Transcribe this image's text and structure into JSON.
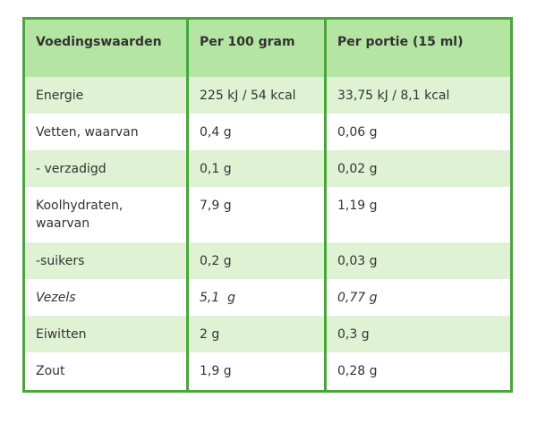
{
  "table": {
    "headers": [
      "Voedingswaarden",
      "Per 100 gram",
      "Per portie (15 ml)"
    ],
    "rows": [
      {
        "label": "Energie",
        "per100": "225 kJ / 54 kcal",
        "portion": "33,75 kJ / 8,1 kcal"
      },
      {
        "label": "Vetten, waarvan",
        "per100": "0,4 g",
        "portion": "0,06 g"
      },
      {
        "label": "- verzadigd",
        "per100": "0,1 g",
        "portion": "0,02 g"
      },
      {
        "label": "Koolhydraten, waarvan",
        "per100": "7,9 g",
        "portion": "1,19 g"
      },
      {
        "label": "-suikers",
        "per100": "0,2 g",
        "portion": "0,03 g"
      },
      {
        "label": "Vezels",
        "per100": "5,1  g",
        "portion": "0,77 g"
      },
      {
        "label": "Eiwitten",
        "per100": "2 g",
        "portion": "0,3 g"
      },
      {
        "label": "Zout",
        "per100": "1,9 g",
        "portion": "0,28 g"
      }
    ]
  }
}
